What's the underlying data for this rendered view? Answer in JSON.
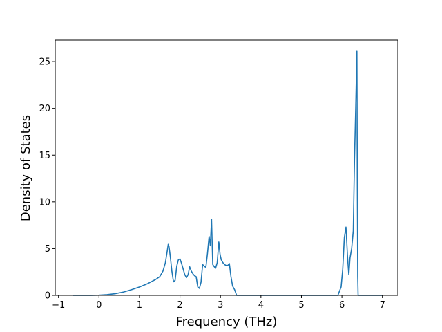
{
  "chart_data": {
    "type": "line",
    "title": "",
    "xlabel": "Frequency (THz)",
    "ylabel": "Density of States",
    "xlim": [
      -1.08,
      7.38
    ],
    "ylim": [
      0,
      27.3
    ],
    "xticks": [
      -1,
      0,
      1,
      2,
      3,
      4,
      5,
      6,
      7
    ],
    "yticks": [
      0,
      5,
      10,
      15,
      20,
      25
    ],
    "grid": false,
    "line_color": "#1f77b4",
    "series": [
      {
        "x": [
          -0.65,
          -0.4,
          -0.2,
          0.0,
          0.2,
          0.4,
          0.6,
          0.8,
          1.0,
          1.2,
          1.4,
          1.5,
          1.58,
          1.64,
          1.68,
          1.71,
          1.73,
          1.76,
          1.8,
          1.84,
          1.88,
          1.92,
          1.96,
          2.0,
          2.04,
          2.08,
          2.12,
          2.16,
          2.2,
          2.24,
          2.28,
          2.32,
          2.36,
          2.4,
          2.44,
          2.48,
          2.52,
          2.56,
          2.6,
          2.64,
          2.68,
          2.72,
          2.75,
          2.78,
          2.81,
          2.84,
          2.88,
          2.92,
          2.96,
          2.99,
          3.02,
          3.06,
          3.1,
          3.14,
          3.18,
          3.22,
          3.26,
          3.3,
          3.35,
          3.4,
          3.5,
          4.0,
          5.0,
          5.9,
          5.98,
          6.02,
          6.06,
          6.1,
          6.14,
          6.17,
          6.2,
          6.24,
          6.28,
          6.31,
          6.34,
          6.37,
          6.38,
          6.39,
          6.4,
          7.0
        ],
        "y": [
          0.0,
          0.0,
          0.0,
          0.02,
          0.08,
          0.18,
          0.35,
          0.6,
          0.9,
          1.25,
          1.7,
          2.0,
          2.6,
          3.5,
          4.6,
          5.45,
          5.2,
          4.2,
          2.6,
          1.45,
          1.6,
          3.1,
          3.8,
          3.9,
          3.4,
          2.8,
          2.2,
          1.9,
          2.2,
          3.05,
          2.6,
          2.3,
          2.1,
          2.0,
          0.9,
          0.75,
          1.4,
          3.3,
          3.1,
          3.0,
          4.5,
          6.3,
          5.3,
          8.15,
          3.3,
          3.1,
          2.9,
          3.5,
          5.7,
          4.4,
          3.8,
          3.5,
          3.3,
          3.2,
          3.2,
          3.4,
          2.0,
          1.0,
          0.6,
          0.0,
          0.0,
          0.0,
          0.0,
          0.0,
          0.9,
          2.8,
          6.2,
          7.3,
          4.0,
          2.2,
          4.0,
          5.0,
          6.9,
          14.5,
          20.0,
          26.1,
          12.0,
          2.0,
          0.0,
          0.0
        ]
      }
    ]
  }
}
